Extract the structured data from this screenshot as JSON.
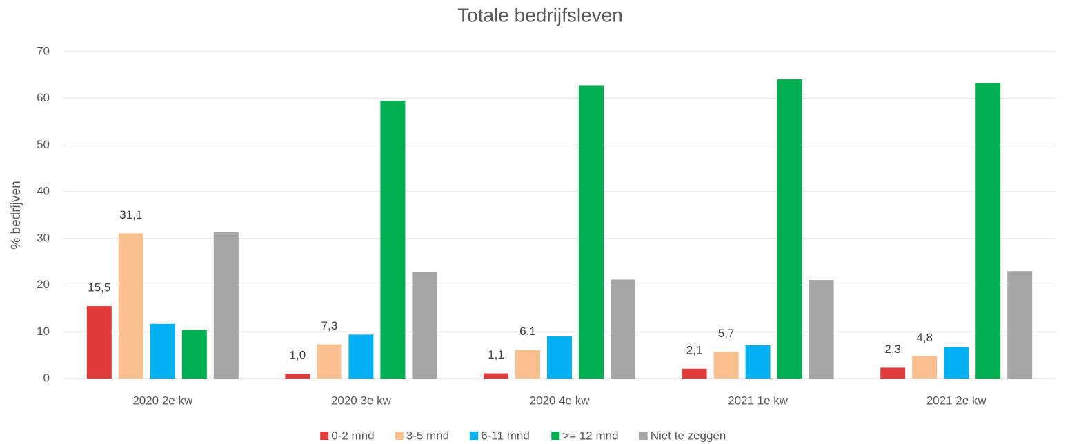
{
  "chart_data": {
    "type": "bar",
    "title": "Totale bedrijfsleven",
    "y_label": "% bedrijven",
    "categories": [
      "2020 2e kw",
      "2020 3e kw",
      "2020 4e kw",
      "2021 1e kw",
      "2021 2e kw"
    ],
    "series": [
      {
        "name": "0-2 mnd",
        "color": "#e03c3c",
        "values": [
          15.5,
          1.0,
          1.1,
          2.1,
          2.3
        ],
        "value_labels": [
          "15,5",
          "1,0",
          "1,1",
          "2,1",
          "2,3"
        ]
      },
      {
        "name": "3-5 mnd",
        "color": "#f8c08f",
        "values": [
          31.1,
          7.3,
          6.1,
          5.7,
          4.8
        ],
        "value_labels": [
          "31,1",
          "7,3",
          "6,1",
          "5,7",
          "4,8"
        ]
      },
      {
        "name": "6-11 mnd",
        "color": "#00b0f0",
        "values": [
          11.7,
          9.4,
          9.0,
          7.1,
          6.7
        ]
      },
      {
        "name": ">= 12 mnd",
        "color": "#00b050",
        "values": [
          10.4,
          59.5,
          62.7,
          64.1,
          63.3
        ]
      },
      {
        "name": "Niet te zeggen",
        "color": "#a5a5a5",
        "values": [
          31.3,
          22.8,
          21.2,
          21.1,
          23.0
        ]
      }
    ],
    "ylim": [
      0,
      70
    ],
    "yticks": [
      0,
      10,
      20,
      30,
      40,
      50,
      60,
      70
    ],
    "grid": true,
    "legend": "bottom"
  }
}
